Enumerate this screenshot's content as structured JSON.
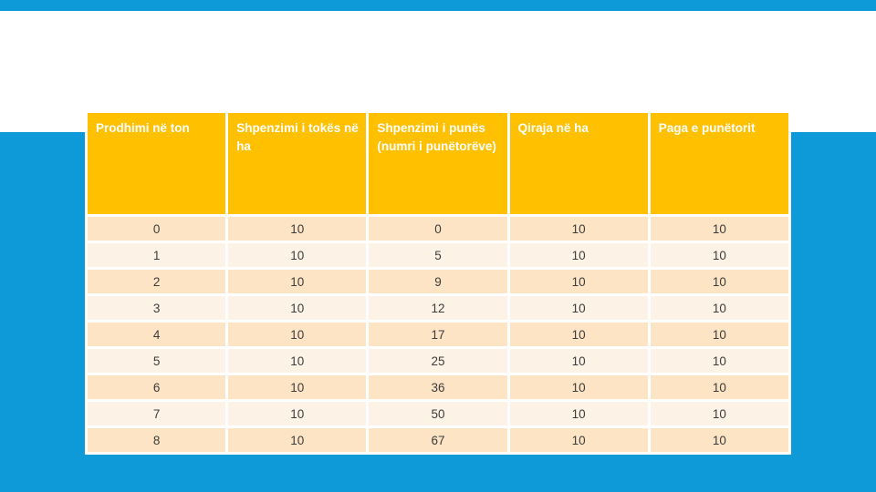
{
  "colors": {
    "background": "#0E9AD9",
    "band": "#FFFFFF",
    "header_bg": "#FFC000",
    "header_text": "#FFFFFF",
    "row_dark": "#FCE4C4",
    "row_light": "#FDF2E6",
    "cell_text": "#3C3C3C",
    "grid": "#FFFFFF"
  },
  "table": {
    "columns": [
      "Prodhimi në ton",
      "Shpenzimi i tokës në ha",
      "Shpenzimi i punës (numri i punëtorëve)",
      "Qiraja në ha",
      "Paga e punëtorit"
    ],
    "rows": [
      [
        "0",
        "10",
        "0",
        "10",
        "10"
      ],
      [
        "1",
        "10",
        "5",
        "10",
        "10"
      ],
      [
        "2",
        "10",
        "9",
        "10",
        "10"
      ],
      [
        "3",
        "10",
        "12",
        "10",
        "10"
      ],
      [
        "4",
        "10",
        "17",
        "10",
        "10"
      ],
      [
        "5",
        "10",
        "25",
        "10",
        "10"
      ],
      [
        "6",
        "10",
        "36",
        "10",
        "10"
      ],
      [
        "7",
        "10",
        "50",
        "10",
        "10"
      ],
      [
        "8",
        "10",
        "67",
        "10",
        "10"
      ]
    ]
  },
  "chart_data": {
    "type": "table",
    "title": "",
    "columns": [
      "Prodhimi në ton",
      "Shpenzimi i tokës në ha",
      "Shpenzimi i punës (numri i punëtorëve)",
      "Qiraja në ha",
      "Paga e punëtorit"
    ],
    "rows": [
      [
        0,
        10,
        0,
        10,
        10
      ],
      [
        1,
        10,
        5,
        10,
        10
      ],
      [
        2,
        10,
        9,
        10,
        10
      ],
      [
        3,
        10,
        12,
        10,
        10
      ],
      [
        4,
        10,
        17,
        10,
        10
      ],
      [
        5,
        10,
        25,
        10,
        10
      ],
      [
        6,
        10,
        36,
        10,
        10
      ],
      [
        7,
        10,
        50,
        10,
        10
      ],
      [
        8,
        10,
        67,
        10,
        10
      ]
    ]
  }
}
